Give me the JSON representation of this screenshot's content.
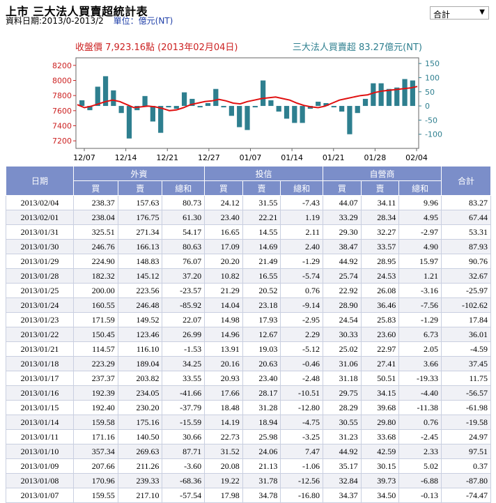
{
  "header": {
    "title": "上市 三大法人買賣超統計表",
    "date_range": "資料日期:2013/0-2013/2",
    "unit": "單位：億元(NT)",
    "select_value": "合計"
  },
  "chart_data": {
    "type": "bar+line",
    "legend_left": "收盤價 7,923.16點 (2013年02月04日)",
    "legend_right": "三大法人買賣超 83.27億元(NT)",
    "left_axis_ticks": [
      "8200",
      "8000",
      "7800",
      "7600",
      "7400",
      "7200"
    ],
    "right_axis_ticks": [
      "150",
      "100",
      "50",
      "0",
      "-50",
      "-100"
    ],
    "x_tick_labels": [
      "12/07",
      "12/14",
      "12/21",
      "12/27",
      "01/07",
      "01/14",
      "01/21",
      "01/28",
      "02/04"
    ],
    "bar_values": [
      20,
      -15,
      68,
      105,
      55,
      -25,
      -115,
      -15,
      35,
      -55,
      -95,
      -5,
      -10,
      48,
      25,
      -5,
      10,
      60,
      -5,
      -35,
      -75,
      -85,
      -5,
      90,
      20,
      -20,
      -45,
      -60,
      -60,
      -10,
      15,
      10,
      -5,
      -20,
      -100,
      -25,
      25,
      80,
      80,
      60,
      65,
      95,
      90
    ],
    "price_values": [
      7680,
      7640,
      7660,
      7690,
      7720,
      7740,
      7720,
      7680,
      7640,
      7650,
      7660,
      7650,
      7630,
      7600,
      7610,
      7640,
      7680,
      7700,
      7720,
      7730,
      7750,
      7730,
      7700,
      7690,
      7720,
      7740,
      7760,
      7770,
      7780,
      7760,
      7740,
      7700,
      7670,
      7650,
      7640,
      7660,
      7700,
      7740,
      7760,
      7780,
      7800,
      7810,
      7840,
      7860,
      7870,
      7880,
      7890,
      7900,
      7920
    ],
    "left_range": [
      7100,
      8300
    ],
    "right_range": [
      -150,
      170
    ]
  },
  "table": {
    "group_headers": [
      "日期",
      "外資",
      "投信",
      "自營商",
      "合計"
    ],
    "sub_headers": [
      "買",
      "賣",
      "總和",
      "買",
      "賣",
      "總和",
      "買",
      "賣",
      "總和"
    ],
    "rows": [
      [
        "2013/02/04",
        "238.37",
        "157.63",
        "80.73",
        "24.12",
        "31.55",
        "-7.43",
        "44.07",
        "34.11",
        "9.96",
        "83.27"
      ],
      [
        "2013/02/01",
        "238.04",
        "176.75",
        "61.30",
        "23.40",
        "22.21",
        "1.19",
        "33.29",
        "28.34",
        "4.95",
        "67.44"
      ],
      [
        "2013/01/31",
        "325.51",
        "271.34",
        "54.17",
        "16.65",
        "14.55",
        "2.11",
        "29.30",
        "32.27",
        "-2.97",
        "53.31"
      ],
      [
        "2013/01/30",
        "246.76",
        "166.13",
        "80.63",
        "17.09",
        "14.69",
        "2.40",
        "38.47",
        "33.57",
        "4.90",
        "87.93"
      ],
      [
        "2013/01/29",
        "224.90",
        "148.83",
        "76.07",
        "20.20",
        "21.49",
        "-1.29",
        "44.92",
        "28.95",
        "15.97",
        "90.76"
      ],
      [
        "2013/01/28",
        "182.32",
        "145.12",
        "37.20",
        "10.82",
        "16.55",
        "-5.74",
        "25.74",
        "24.53",
        "1.21",
        "32.67"
      ],
      [
        "2013/01/25",
        "200.00",
        "223.56",
        "-23.57",
        "21.29",
        "20.52",
        "0.76",
        "22.92",
        "26.08",
        "-3.16",
        "-25.97"
      ],
      [
        "2013/01/24",
        "160.55",
        "246.48",
        "-85.92",
        "14.04",
        "23.18",
        "-9.14",
        "28.90",
        "36.46",
        "-7.56",
        "-102.62"
      ],
      [
        "2013/01/23",
        "171.59",
        "149.52",
        "22.07",
        "14.98",
        "17.93",
        "-2.95",
        "24.54",
        "25.83",
        "-1.29",
        "17.84"
      ],
      [
        "2013/01/22",
        "150.45",
        "123.46",
        "26.99",
        "14.96",
        "12.67",
        "2.29",
        "30.33",
        "23.60",
        "6.73",
        "36.01"
      ],
      [
        "2013/01/21",
        "114.57",
        "116.10",
        "-1.53",
        "13.91",
        "19.03",
        "-5.12",
        "25.02",
        "22.97",
        "2.05",
        "-4.59"
      ],
      [
        "2013/01/18",
        "223.29",
        "189.04",
        "34.25",
        "20.16",
        "20.63",
        "-0.46",
        "31.06",
        "27.41",
        "3.66",
        "37.45"
      ],
      [
        "2013/01/17",
        "237.37",
        "203.82",
        "33.55",
        "20.93",
        "23.40",
        "-2.48",
        "31.18",
        "50.51",
        "-19.33",
        "11.75"
      ],
      [
        "2013/01/16",
        "192.39",
        "234.05",
        "-41.66",
        "17.66",
        "28.17",
        "-10.51",
        "29.75",
        "34.15",
        "-4.40",
        "-56.57"
      ],
      [
        "2013/01/15",
        "192.40",
        "230.20",
        "-37.79",
        "18.48",
        "31.28",
        "-12.80",
        "28.29",
        "39.68",
        "-11.38",
        "-61.98"
      ],
      [
        "2013/01/14",
        "159.58",
        "175.16",
        "-15.59",
        "14.19",
        "18.94",
        "-4.75",
        "30.55",
        "29.80",
        "0.76",
        "-19.58"
      ],
      [
        "2013/01/11",
        "171.16",
        "140.50",
        "30.66",
        "22.73",
        "25.98",
        "-3.25",
        "31.23",
        "33.68",
        "-2.45",
        "24.97"
      ],
      [
        "2013/01/10",
        "357.34",
        "269.63",
        "87.71",
        "31.52",
        "24.06",
        "7.47",
        "44.92",
        "42.59",
        "2.33",
        "97.51"
      ],
      [
        "2013/01/09",
        "207.66",
        "211.26",
        "-3.60",
        "20.08",
        "21.13",
        "-1.06",
        "35.17",
        "30.15",
        "5.02",
        "0.37"
      ],
      [
        "2013/01/08",
        "170.96",
        "239.33",
        "-68.36",
        "19.22",
        "31.78",
        "-12.56",
        "32.84",
        "39.73",
        "-6.88",
        "-87.80"
      ],
      [
        "2013/01/07",
        "159.55",
        "217.10",
        "-57.54",
        "17.98",
        "34.78",
        "-16.80",
        "34.37",
        "34.50",
        "-0.13",
        "-74.47"
      ]
    ]
  }
}
